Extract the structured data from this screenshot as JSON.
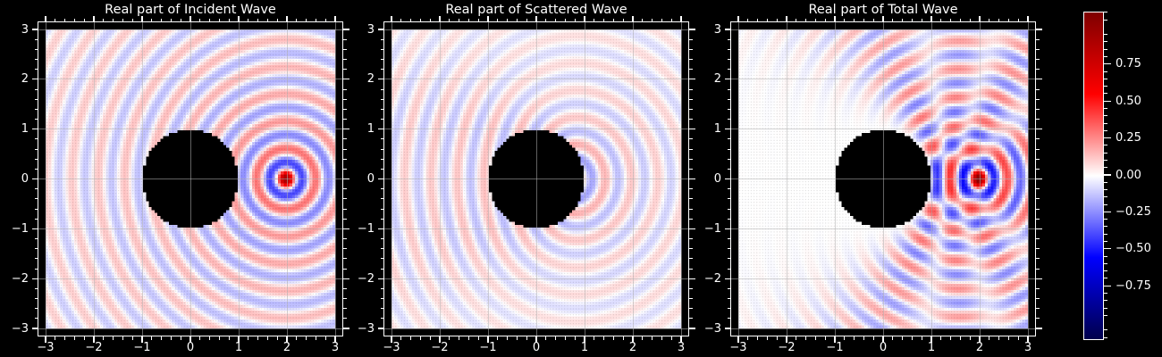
{
  "chart_data": {
    "type": "heatmap",
    "layout": "three square subplots in a row with one shared vertical colorbar on the right, dark (black) figure background",
    "subplots": [
      {
        "title": "Real part of Incident Wave",
        "field": "incident"
      },
      {
        "title": "Real part of Scattered Wave",
        "field": "scattered"
      },
      {
        "title": "Real part of Total Wave",
        "field": "total"
      }
    ],
    "axes": {
      "xlim": [
        -3,
        3
      ],
      "ylim": [
        -3,
        3
      ],
      "x_tick_values": [
        -3,
        -2,
        -1,
        0,
        1,
        2,
        3
      ],
      "x_tick_labels": [
        "−3",
        "−2",
        "−1",
        "0",
        "1",
        "2",
        "3"
      ],
      "y_tick_values": [
        -3,
        -2,
        -1,
        0,
        1,
        2,
        3
      ],
      "y_tick_labels": [
        "−3",
        "−2",
        "−1",
        "0",
        "1",
        "2",
        "3"
      ],
      "minor_tick_step": 0.2,
      "grid": true,
      "ticks_on_all_sides": true
    },
    "field_params": {
      "description": "point source wave scattering off a sound-soft disk; plotted quantity is Re(u) on a coarse cell grid, disk region masked black",
      "wavenumber_k": 11.4,
      "source_position": [
        2,
        0
      ],
      "disk_center": [
        0,
        0
      ],
      "disk_radius": 1.0,
      "boundary_condition": "dirichlet",
      "grid_points": 101,
      "series_order": 36
    },
    "colorbar": {
      "colormap": "seismic",
      "gradient_stops_top_to_bottom": [
        "#7F0000",
        "#FF0000",
        "#FFFFFF",
        "#0000FF",
        "#00004C"
      ],
      "tick_values": [
        0.75,
        0.5,
        0.25,
        0.0,
        -0.25,
        -0.5,
        -0.75
      ],
      "tick_labels": [
        "0.75",
        "0.50",
        "0.25",
        "0.00",
        "−0.25",
        "−0.50",
        "−0.75"
      ],
      "minor_tick_step": 0.05,
      "range_symmetric_about_zero": true
    },
    "colors": {
      "background": "#000000",
      "text": "#FFFFFF",
      "spine": "#FFFFFF",
      "grid": "#B2B2B2",
      "mask": "#000000"
    }
  }
}
